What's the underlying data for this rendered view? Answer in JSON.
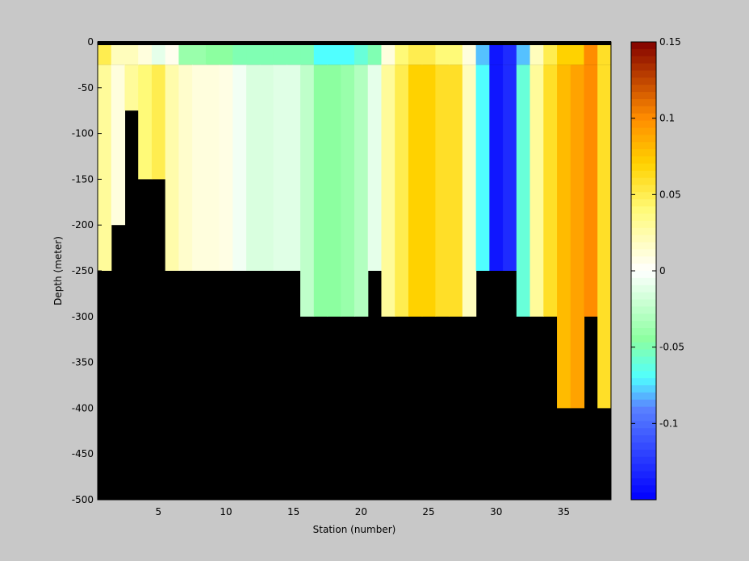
{
  "chart_data": {
    "type": "heatmap",
    "title": "",
    "xlabel": "Station (number)",
    "ylabel": "Depth (meter)",
    "xlim": [
      1,
      38
    ],
    "ylim": [
      -500,
      0
    ],
    "x_ticks": [
      5,
      10,
      15,
      20,
      25,
      30,
      35
    ],
    "y_ticks": [
      0,
      -50,
      -100,
      -150,
      -200,
      -250,
      -300,
      -350,
      -400,
      -450,
      -500
    ],
    "colorbar": {
      "min": -0.15,
      "max": 0.15,
      "ticks": [
        0.15,
        0.1,
        0.05,
        0,
        -0.05,
        -0.1
      ],
      "colormap": "jet-like with white at zero"
    },
    "land_color": "#000000",
    "stations": [
      {
        "station": 1,
        "bottom_depth": -250,
        "value": 0.03
      },
      {
        "station": 2,
        "bottom_depth": -200,
        "value": 0.01
      },
      {
        "station": 3,
        "bottom_depth": -75,
        "value": 0.03
      },
      {
        "station": 4,
        "bottom_depth": -150,
        "value": 0.04
      },
      {
        "station": 5,
        "bottom_depth": -150,
        "value": 0.05
      },
      {
        "station": 6,
        "bottom_depth": -250,
        "value": 0.025
      },
      {
        "station": 7,
        "bottom_depth": -250,
        "value": 0.015
      },
      {
        "station": 8,
        "bottom_depth": -250,
        "value": 0.01
      },
      {
        "station": 9,
        "bottom_depth": -250,
        "value": 0.01
      },
      {
        "station": 10,
        "bottom_depth": -250,
        "value": 0.008
      },
      {
        "station": 11,
        "bottom_depth": -250,
        "value": -0.005
      },
      {
        "station": 12,
        "bottom_depth": -250,
        "value": -0.015
      },
      {
        "station": 13,
        "bottom_depth": -250,
        "value": -0.015
      },
      {
        "station": 14,
        "bottom_depth": -250,
        "value": -0.012
      },
      {
        "station": 15,
        "bottom_depth": -250,
        "value": -0.012
      },
      {
        "station": 16,
        "bottom_depth": -300,
        "value": -0.025
      },
      {
        "station": 17,
        "bottom_depth": -300,
        "value": -0.045
      },
      {
        "station": 18,
        "bottom_depth": -300,
        "value": -0.045
      },
      {
        "station": 19,
        "bottom_depth": -300,
        "value": -0.04
      },
      {
        "station": 20,
        "bottom_depth": -300,
        "value": -0.03
      },
      {
        "station": 21,
        "bottom_depth": -250,
        "value": -0.01
      },
      {
        "station": 22,
        "bottom_depth": -300,
        "value": 0.03
      },
      {
        "station": 23,
        "bottom_depth": -300,
        "value": 0.05
      },
      {
        "station": 24,
        "bottom_depth": -300,
        "value": 0.07
      },
      {
        "station": 25,
        "bottom_depth": -300,
        "value": 0.07
      },
      {
        "station": 26,
        "bottom_depth": -300,
        "value": 0.06
      },
      {
        "station": 27,
        "bottom_depth": -300,
        "value": 0.06
      },
      {
        "station": 28,
        "bottom_depth": -300,
        "value": 0.02
      },
      {
        "station": 29,
        "bottom_depth": -250,
        "value": -0.07
      },
      {
        "station": 30,
        "bottom_depth": -250,
        "value": -0.14
      },
      {
        "station": 31,
        "bottom_depth": -250,
        "value": -0.13
      },
      {
        "station": 32,
        "bottom_depth": -300,
        "value": -0.06
      },
      {
        "station": 33,
        "bottom_depth": -300,
        "value": 0.03
      },
      {
        "station": 34,
        "bottom_depth": -300,
        "value": 0.06
      },
      {
        "station": 35,
        "bottom_depth": -400,
        "value": 0.08
      },
      {
        "station": 36,
        "bottom_depth": -400,
        "value": 0.09
      },
      {
        "station": 37,
        "bottom_depth": -300,
        "value": 0.1
      },
      {
        "station": 38,
        "bottom_depth": -400,
        "value": 0.06
      }
    ],
    "surface_layer": [
      0.05,
      0.02,
      0.02,
      0.01,
      -0.01,
      0.005,
      -0.04,
      -0.04,
      -0.045,
      -0.045,
      -0.05,
      -0.05,
      -0.05,
      -0.05,
      -0.05,
      -0.05,
      -0.07,
      -0.07,
      -0.07,
      -0.06,
      -0.05,
      0.01,
      0.04,
      0.05,
      0.05,
      0.04,
      0.04,
      0.01,
      -0.08,
      -0.14,
      -0.13,
      -0.08,
      0.02,
      0.05,
      0.07,
      0.07,
      0.1,
      0.06
    ]
  }
}
